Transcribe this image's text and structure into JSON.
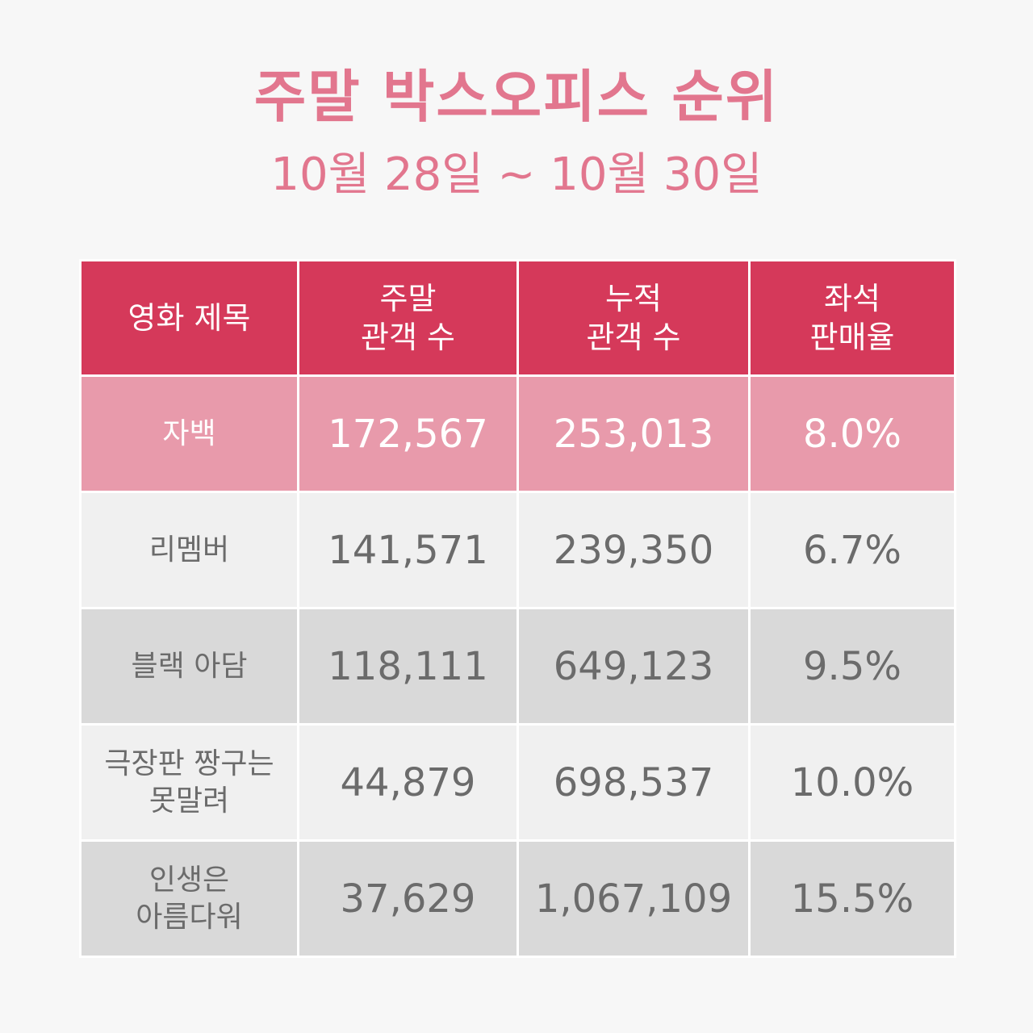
{
  "title": "주말 박스오피스 순위",
  "subtitle": "10월 28일 ~ 10월 30일",
  "colors": {
    "title": "#e2768e",
    "header_bg": "#d5395a",
    "highlight_row_bg": "#e89aab",
    "row_light_bg": "#f0f0f0",
    "row_dark_bg": "#d9d9d9",
    "cell_text": "#6b6b6b"
  },
  "table": {
    "headers": [
      [
        "영화 제목"
      ],
      [
        "주말",
        "관객 수"
      ],
      [
        "누적",
        "관객 수"
      ],
      [
        "좌석",
        "판매율"
      ]
    ]
  },
  "chart_data": {
    "type": "table",
    "title": "주말 박스오피스 순위",
    "subtitle": "10월 28일 ~ 10월 30일",
    "columns": [
      "영화 제목",
      "주말 관객 수",
      "누적 관객 수",
      "좌석 판매율"
    ],
    "rows": [
      {
        "name_lines": [
          "자백"
        ],
        "weekend": "172,567",
        "cumulative": "253,013",
        "seat_rate": "8.0%"
      },
      {
        "name_lines": [
          "리멤버"
        ],
        "weekend": "141,571",
        "cumulative": "239,350",
        "seat_rate": "6.7%"
      },
      {
        "name_lines": [
          "블랙 아담"
        ],
        "weekend": "118,111",
        "cumulative": "649,123",
        "seat_rate": "9.5%"
      },
      {
        "name_lines": [
          "극장판 짱구는",
          "못말려"
        ],
        "weekend": "44,879",
        "cumulative": "698,537",
        "seat_rate": "10.0%"
      },
      {
        "name_lines": [
          "인생은",
          "아름다워"
        ],
        "weekend": "37,629",
        "cumulative": "1,067,109",
        "seat_rate": "15.5%"
      }
    ]
  }
}
